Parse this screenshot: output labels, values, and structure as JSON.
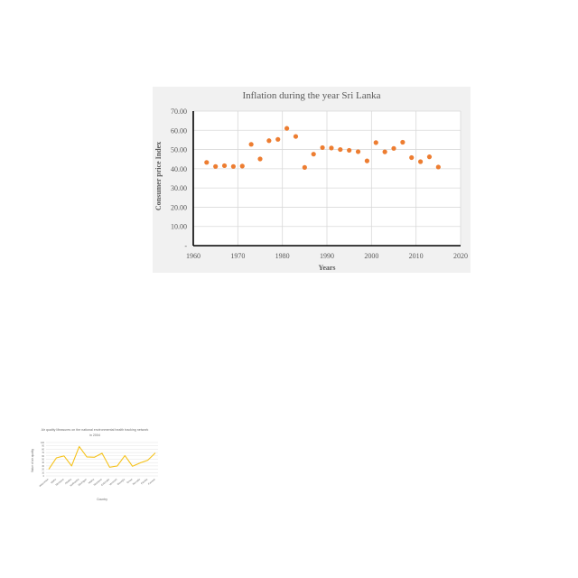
{
  "chart_data": [
    {
      "type": "scatter",
      "title": "Inflation during the year Sri Lanka",
      "xlabel": "Years",
      "ylabel": "Consumer price Index",
      "xlim": [
        1960,
        2020
      ],
      "ylim": [
        0,
        70
      ],
      "x_ticks": [
        "1960",
        "1970",
        "1980",
        "1990",
        "2000",
        "2010",
        "2020"
      ],
      "x_tick_values": [
        1960,
        1970,
        1980,
        1990,
        2000,
        2010,
        2020
      ],
      "y_ticks": [
        "-",
        "10.00",
        "20.00",
        "30.00",
        "40.00",
        "50.00",
        "60.00",
        "70.00"
      ],
      "y_tick_values": [
        0,
        10,
        20,
        30,
        40,
        50,
        60,
        70
      ],
      "grid": true,
      "color": "#ed7d31",
      "points": [
        {
          "x": 1963,
          "y": 43.3
        },
        {
          "x": 1965,
          "y": 41.2
        },
        {
          "x": 1967,
          "y": 41.6
        },
        {
          "x": 1969,
          "y": 41.2
        },
        {
          "x": 1971,
          "y": 41.4
        },
        {
          "x": 1973,
          "y": 52.7
        },
        {
          "x": 1975,
          "y": 45.1
        },
        {
          "x": 1977,
          "y": 54.6
        },
        {
          "x": 1979,
          "y": 55.3
        },
        {
          "x": 1981,
          "y": 61.0
        },
        {
          "x": 1983,
          "y": 56.8
        },
        {
          "x": 1985,
          "y": 40.7
        },
        {
          "x": 1987,
          "y": 47.6
        },
        {
          "x": 1989,
          "y": 51.0
        },
        {
          "x": 1991,
          "y": 50.8
        },
        {
          "x": 1993,
          "y": 50.0
        },
        {
          "x": 1995,
          "y": 49.6
        },
        {
          "x": 1997,
          "y": 48.9
        },
        {
          "x": 1999,
          "y": 44.1
        },
        {
          "x": 2001,
          "y": 53.6
        },
        {
          "x": 2003,
          "y": 48.8
        },
        {
          "x": 2005,
          "y": 50.6
        },
        {
          "x": 2007,
          "y": 53.8
        },
        {
          "x": 2009,
          "y": 45.8
        },
        {
          "x": 2011,
          "y": 43.7
        },
        {
          "x": 2013,
          "y": 46.2
        },
        {
          "x": 2015,
          "y": 40.9
        }
      ]
    },
    {
      "type": "line",
      "title": "Air quality Measures on the national environmental health tracking network in 2004",
      "xlabel": "Country",
      "ylabel": "Value of air quality",
      "ylim": [
        0,
        100
      ],
      "y_ticks": [
        "100",
        "90",
        "80",
        "70",
        "60",
        "50",
        "40",
        "30",
        "20",
        "10",
        "0"
      ],
      "y_tick_values": [
        100,
        90,
        80,
        70,
        60,
        50,
        40,
        30,
        20,
        10,
        0
      ],
      "grid": true,
      "color": "#f5c21b",
      "categories": [
        "Wisconsin",
        "Idaho",
        "Montana",
        "Alaska",
        "Nebraska",
        "Michigan",
        "Maine",
        "Montana",
        "Colorado",
        "Vermont",
        "Georgia",
        "Texas",
        "Nevada",
        "Florida",
        "Kansas"
      ],
      "values": [
        20,
        54,
        60,
        30,
        88,
        57,
        56,
        68,
        26,
        30,
        61,
        29,
        39,
        47,
        69
      ]
    }
  ]
}
